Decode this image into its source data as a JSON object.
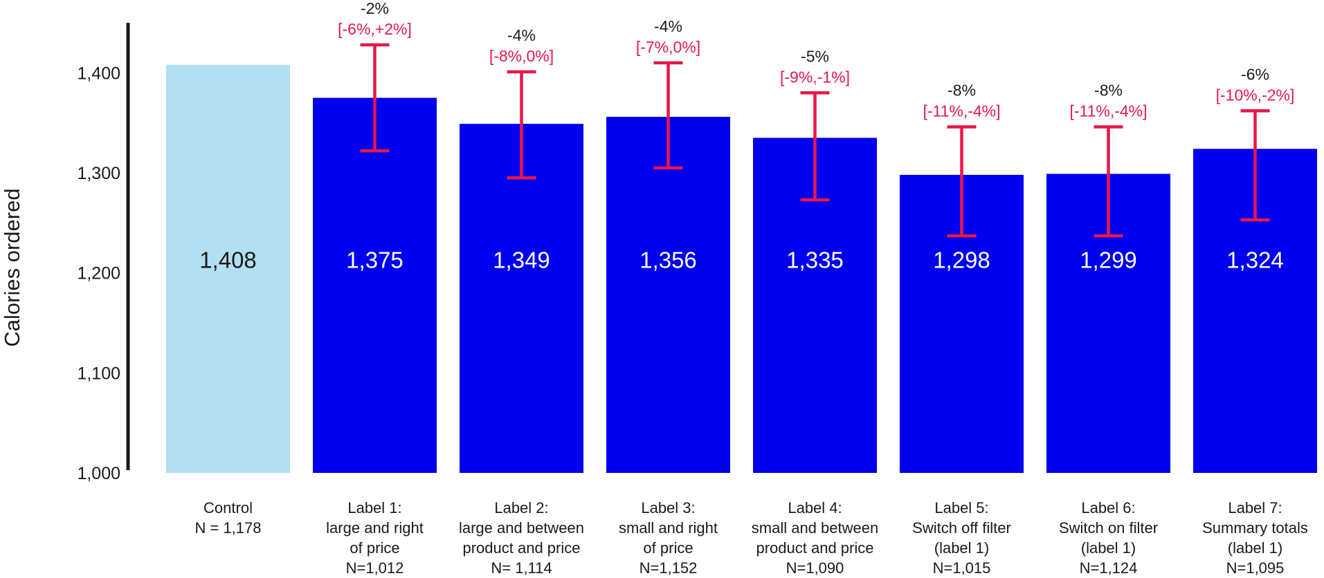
{
  "chart_data": {
    "type": "bar",
    "title": "",
    "xlabel": "",
    "ylabel": "Calories ordered",
    "ylim": [
      1000,
      1450
    ],
    "yticks": [
      {
        "value": 1000,
        "label": "1,000"
      },
      {
        "value": 1100,
        "label": "1,100"
      },
      {
        "value": 1200,
        "label": "1,200"
      },
      {
        "value": 1300,
        "label": "1,300"
      },
      {
        "value": 1400,
        "label": "1,400"
      }
    ],
    "grid": false,
    "legend": "none",
    "colors": {
      "control": "#b3dff2",
      "treatment": "#0000ee",
      "error": "#e8174a",
      "text": "#1a1a1a"
    },
    "bars": [
      {
        "value": 1408,
        "value_label": "1,408",
        "control": true,
        "category_lines": [
          "Control",
          "N = 1,178"
        ]
      },
      {
        "value": 1375,
        "value_label": "1,375",
        "pct": "-2%",
        "ci": "[-6%,+2%]",
        "ci_low": 1322,
        "ci_high": 1428,
        "category_lines": [
          "Label 1:",
          "large and right",
          "of price",
          "N=1,012"
        ]
      },
      {
        "value": 1349,
        "value_label": "1,349",
        "pct": "-4%",
        "ci": "[-8%,0%]",
        "ci_low": 1295,
        "ci_high": 1401,
        "category_lines": [
          "Label 2:",
          "large and between",
          "product and price",
          "N= 1,114"
        ]
      },
      {
        "value": 1356,
        "value_label": "1,356",
        "pct": "-4%",
        "ci": "[-7%,0%]",
        "ci_low": 1305,
        "ci_high": 1410,
        "category_lines": [
          "Label 3:",
          "small and right",
          "of price",
          "N=1,152"
        ]
      },
      {
        "value": 1335,
        "value_label": "1,335",
        "pct": "-5%",
        "ci": "[-9%,-1%]",
        "ci_low": 1273,
        "ci_high": 1380,
        "category_lines": [
          "Label 4:",
          "small and between",
          "product and price",
          "N=1,090"
        ]
      },
      {
        "value": 1298,
        "value_label": "1,298",
        "pct": "-8%",
        "ci": "[-11%,-4%]",
        "ci_low": 1237,
        "ci_high": 1346,
        "category_lines": [
          "Label 5:",
          "Switch off filter",
          "(label 1)",
          "N=1,015"
        ]
      },
      {
        "value": 1299,
        "value_label": "1,299",
        "pct": "-8%",
        "ci": "[-11%,-4%]",
        "ci_low": 1237,
        "ci_high": 1346,
        "category_lines": [
          "Label 6:",
          "Switch on filter",
          "(label 1)",
          "N=1,124"
        ]
      },
      {
        "value": 1324,
        "value_label": "1,324",
        "pct": "-6%",
        "ci": "[-10%,-2%]",
        "ci_low": 1253,
        "ci_high": 1362,
        "category_lines": [
          "Label 7:",
          "Summary totals",
          "(label 1)",
          "N=1,095"
        ]
      }
    ]
  }
}
